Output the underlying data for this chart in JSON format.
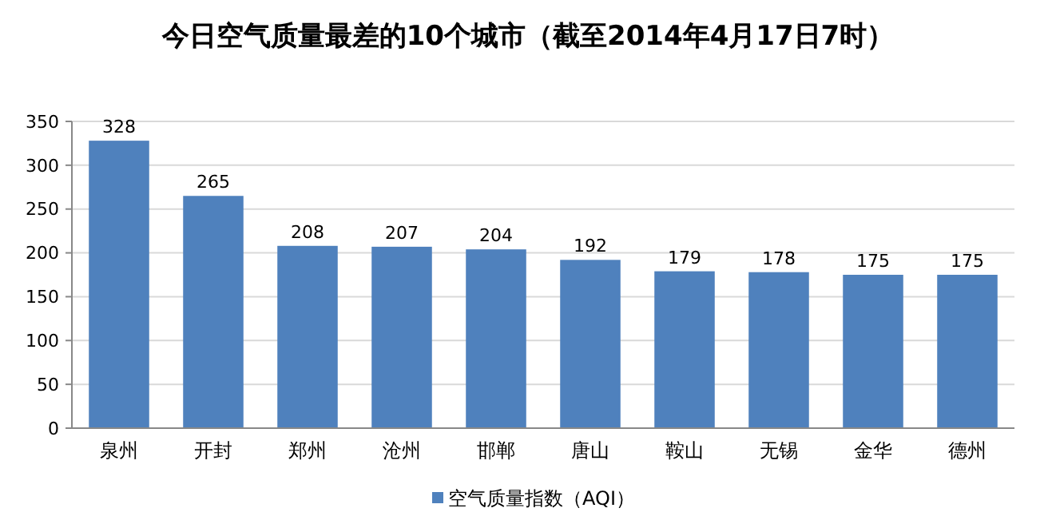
{
  "chart_data": {
    "type": "bar",
    "title": "今日空气质量最差的10个城市（截至2014年4月17日7时）",
    "categories": [
      "泉州",
      "开封",
      "郑州",
      "沧州",
      "邯郸",
      "唐山",
      "鞍山",
      "无锡",
      "金华",
      "德州"
    ],
    "series": [
      {
        "name": "空气质量指数（AQI）",
        "color": "#4f81bd",
        "values": [
          328,
          265,
          208,
          207,
          204,
          192,
          179,
          178,
          175,
          175
        ]
      }
    ],
    "ylim": [
      0,
      350
    ],
    "yticks": [
      0,
      50,
      100,
      150,
      200,
      250,
      300,
      350
    ],
    "grid": "y",
    "legend": "bottom",
    "data_labels": true
  }
}
